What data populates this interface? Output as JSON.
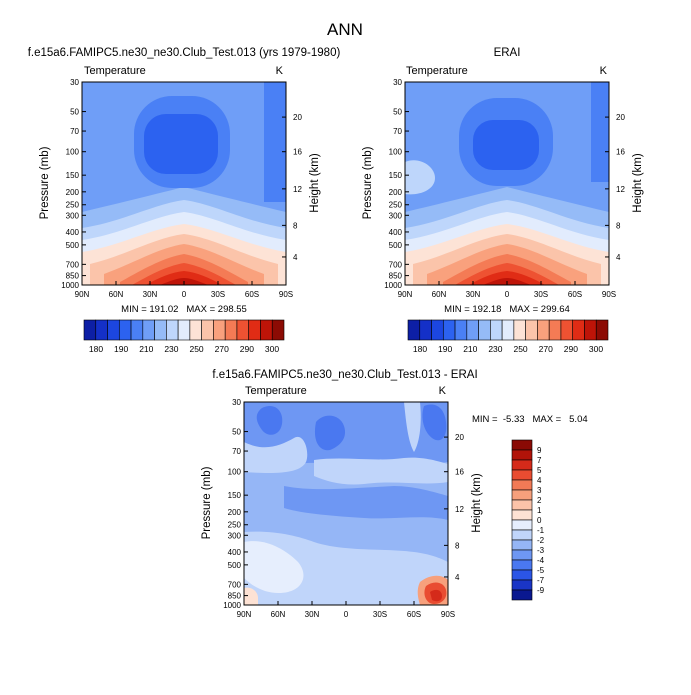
{
  "figure": {
    "main_title": "ANN"
  },
  "colors": {
    "abs_scale": [
      "#0d1fa5",
      "#1430c8",
      "#1c46e0",
      "#2c62f0",
      "#4a80f5",
      "#6f9ef7",
      "#95bbf7",
      "#bed6fb",
      "#e2ecfd",
      "#fde3d6",
      "#fbc4aa",
      "#f9a17d",
      "#f47b55",
      "#ee5232",
      "#e02c15",
      "#be1408",
      "#8c0b04"
    ],
    "diff_scale": [
      "#0a1890",
      "#1a35c6",
      "#2b55e6",
      "#4a78f0",
      "#6e97f3",
      "#95b6f6",
      "#c0d5fa",
      "#e6eefd",
      "#fde2d4",
      "#fbc3a9",
      "#f7a07c",
      "#f27a56",
      "#e94c31",
      "#d52a1a",
      "#b11309",
      "#8a0a05"
    ]
  },
  "chart_data": [
    {
      "type": "heatmap",
      "panel": "model",
      "title": "f.e15a6.FAMIPC5.ne30_ne30.Club_Test.013 (yrs 1979-1980)",
      "left_label": "Temperature",
      "right_label": "K",
      "ylabel": "Pressure (mb)",
      "y2label": "Height (km)",
      "x_ticks": [
        "90N",
        "60N",
        "30N",
        "0",
        "30S",
        "60S",
        "90S"
      ],
      "y_ticks": [
        "30",
        "50",
        "70",
        "100",
        "150",
        "200",
        "250",
        "300",
        "400",
        "500",
        "700",
        "850",
        "1000"
      ],
      "y2_ticks": [
        "20",
        "16",
        "12",
        "8",
        "4"
      ],
      "ylim": [
        1000,
        30
      ],
      "stats": "MIN = 191.02   MAX = 298.55",
      "min": 191.02,
      "max": 298.55
    },
    {
      "type": "heatmap",
      "panel": "obs",
      "title": "ERAI",
      "left_label": "Temperature",
      "right_label": "K",
      "ylabel": "Pressure (mb)",
      "y2label": "Height (km)",
      "x_ticks": [
        "90N",
        "60N",
        "30N",
        "0",
        "30S",
        "60S",
        "90S"
      ],
      "y_ticks": [
        "30",
        "50",
        "70",
        "100",
        "150",
        "200",
        "250",
        "300",
        "400",
        "500",
        "700",
        "850",
        "1000"
      ],
      "y2_ticks": [
        "20",
        "16",
        "12",
        "8",
        "4"
      ],
      "ylim": [
        1000,
        30
      ],
      "stats": "MIN = 192.18   MAX = 299.64",
      "min": 192.18,
      "max": 299.64
    },
    {
      "type": "heatmap",
      "panel": "diff",
      "title": "f.e15a6.FAMIPC5.ne30_ne30.Club_Test.013 - ERAI",
      "left_label": "Temperature",
      "right_label": "K",
      "ylabel": "Pressure (mb)",
      "y2label": "Height (km)",
      "x_ticks": [
        "90N",
        "60N",
        "30N",
        "0",
        "30S",
        "60S",
        "90S"
      ],
      "y_ticks": [
        "30",
        "50",
        "70",
        "100",
        "150",
        "200",
        "250",
        "300",
        "400",
        "500",
        "700",
        "850",
        "1000"
      ],
      "y2_ticks": [
        "20",
        "16",
        "12",
        "8",
        "4"
      ],
      "ylim": [
        1000,
        30
      ],
      "stats": "MIN =  -5.33   MAX =   5.04",
      "min": -5.33,
      "max": 5.04
    }
  ],
  "colorbar_abs": {
    "labels": [
      "180",
      "190",
      "210",
      "230",
      "250",
      "270",
      "290",
      "300"
    ]
  },
  "colorbar_diff": {
    "labels": [
      "9",
      "7",
      "5",
      "4",
      "3",
      "2",
      "1",
      "0",
      "-1",
      "-2",
      "-3",
      "-4",
      "-5",
      "-7",
      "-9"
    ]
  }
}
